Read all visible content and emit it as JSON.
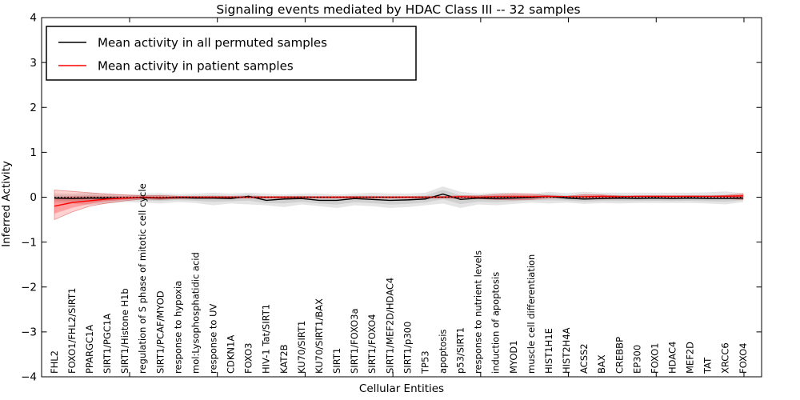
{
  "title": "Signaling events mediated by HDAC Class III -- 32 samples",
  "axes": {
    "ylabel": "Inferred Activity",
    "xlabel": "Cellular Entities",
    "ytick_labels": [
      "4",
      "3",
      "2",
      "1",
      "0",
      "−1",
      "−2",
      "−3",
      "−4"
    ]
  },
  "legend": {
    "items": [
      {
        "label": "Mean activity in all permuted samples",
        "color": "#000000"
      },
      {
        "label": "Mean activity in patient samples",
        "color": "#ff0000"
      }
    ]
  },
  "chart_data": {
    "type": "line",
    "title": "Signaling events mediated by HDAC Class III -- 32 samples",
    "xlabel": "Cellular Entities",
    "ylabel": "Inferred Activity",
    "ylim": [
      -4,
      4
    ],
    "yticks": [
      4,
      3,
      2,
      1,
      0,
      -1,
      -2,
      -3,
      -4
    ],
    "grid": false,
    "legend_position": "upper left",
    "sample_count_in_title": 32,
    "categories": [
      "FHL2",
      "FOXO1/FHL2/SIRT1",
      "PPARGC1A",
      "SIRT1/PGC1A",
      "SIRT1/Histone H1b",
      "regulation of S phase of mitotic cell cycle",
      "SIRT1/PCAF/MYOD",
      "response to hypoxia",
      "mol:Lysophosphatidic acid",
      "response to UV",
      "CDKN1A",
      "FOXO3",
      "HIV-1 Tat/SIRT1",
      "KAT2B",
      "KU70/SIRT1",
      "KU70/SIRT1/BAX",
      "SIRT1",
      "SIRT1/FOXO3a",
      "SIRT1/FOXO4",
      "SIRT1/MEF2D/HDAC4",
      "SIRT1/p300",
      "TP53",
      "apoptosis",
      "p53/SIRT1",
      "response to nutrient levels",
      "induction of apoptosis",
      "MYOD1",
      "muscle cell differentiation",
      "HIST1H1E",
      "HIST2H4A",
      "ACSS2",
      "BAX",
      "CREBBP",
      "EP300",
      "FOXO1",
      "HDAC4",
      "MEF2D",
      "TAT",
      "XRCC6",
      "FOXO4"
    ],
    "series": [
      {
        "name": "Mean activity in all permuted samples",
        "color": "#000000",
        "style": "solid",
        "values": [
          -0.02,
          -0.03,
          -0.02,
          -0.02,
          -0.02,
          -0.01,
          -0.02,
          -0.01,
          -0.02,
          -0.02,
          -0.03,
          0.02,
          -0.07,
          -0.04,
          -0.03,
          -0.07,
          -0.07,
          -0.03,
          -0.05,
          -0.07,
          -0.06,
          -0.04,
          0.07,
          -0.05,
          -0.02,
          -0.03,
          -0.02,
          -0.01,
          0.02,
          -0.02,
          -0.04,
          -0.03,
          -0.02,
          -0.03,
          -0.02,
          -0.03,
          -0.02,
          -0.03,
          -0.03,
          -0.02
        ]
      },
      {
        "name": "Mean activity in patient samples",
        "color": "#ff0000",
        "style": "solid",
        "values": [
          -0.2,
          -0.12,
          -0.08,
          -0.04,
          -0.02,
          0.0,
          -0.01,
          0.0,
          0.0,
          0.0,
          0.0,
          0.0,
          0.0,
          0.0,
          0.0,
          0.0,
          0.0,
          0.0,
          0.0,
          0.0,
          0.0,
          0.0,
          0.0,
          0.01,
          0.0,
          0.01,
          0.01,
          0.01,
          0.02,
          0.01,
          0.01,
          0.02,
          0.01,
          0.02,
          0.02,
          0.02,
          0.02,
          0.02,
          0.02,
          0.03
        ]
      },
      {
        "name": "zero reference",
        "color": "#000000",
        "style": "dotted",
        "constant_value": 0
      }
    ],
    "bands": [
      {
        "name": "permuted samples range",
        "color": "#000000",
        "top": [
          0.09,
          0.08,
          0.1,
          0.08,
          0.06,
          0.08,
          0.09,
          0.07,
          0.08,
          0.1,
          0.08,
          0.1,
          0.08,
          0.06,
          0.08,
          0.08,
          0.06,
          0.08,
          0.1,
          0.08,
          0.08,
          0.1,
          0.24,
          0.12,
          0.08,
          0.1,
          0.09,
          0.08,
          0.12,
          0.09,
          0.12,
          0.1,
          0.1,
          0.1,
          0.1,
          0.1,
          0.1,
          0.11,
          0.13,
          0.09
        ],
        "bottom": [
          -0.12,
          -0.14,
          -0.17,
          -0.14,
          -0.11,
          -0.12,
          -0.14,
          -0.11,
          -0.13,
          -0.18,
          -0.14,
          -0.16,
          -0.18,
          -0.22,
          -0.16,
          -0.2,
          -0.24,
          -0.18,
          -0.2,
          -0.24,
          -0.22,
          -0.18,
          -0.14,
          -0.24,
          -0.16,
          -0.18,
          -0.15,
          -0.12,
          -0.14,
          -0.12,
          -0.15,
          -0.13,
          -0.14,
          -0.13,
          -0.13,
          -0.13,
          -0.13,
          -0.14,
          -0.16,
          -0.11
        ]
      },
      {
        "name": "patient samples range",
        "color": "#ff0000",
        "top": [
          0.16,
          0.13,
          0.1,
          0.07,
          0.05,
          0.03,
          0.04,
          0.02,
          0.015,
          0.015,
          0.015,
          0.015,
          0.015,
          0.015,
          0.015,
          0.015,
          0.015,
          0.015,
          0.015,
          0.015,
          0.015,
          0.015,
          0.02,
          0.03,
          0.03,
          0.06,
          0.08,
          0.07,
          0.03,
          0.02,
          0.06,
          0.05,
          0.03,
          0.02,
          0.02,
          0.02,
          0.02,
          0.02,
          0.04,
          0.08
        ],
        "bottom": [
          -0.5,
          -0.33,
          -0.2,
          -0.13,
          -0.08,
          -0.04,
          -0.05,
          -0.03,
          -0.02,
          -0.02,
          -0.02,
          -0.02,
          -0.02,
          -0.02,
          -0.02,
          -0.02,
          -0.02,
          -0.02,
          -0.02,
          -0.02,
          -0.02,
          -0.02,
          -0.02,
          -0.03,
          -0.03,
          -0.05,
          -0.06,
          -0.05,
          -0.02,
          -0.02,
          -0.04,
          -0.04,
          -0.03,
          -0.02,
          -0.02,
          -0.02,
          -0.02,
          -0.02,
          -0.03,
          -0.05
        ]
      }
    ]
  },
  "colors": {
    "permuted_line": "#000000",
    "patient_line": "#ff0000",
    "permuted_band": "rgba(0,0,0,0.10)",
    "patient_band": "rgba(255,0,0,0.18)",
    "background": "#ffffff"
  }
}
